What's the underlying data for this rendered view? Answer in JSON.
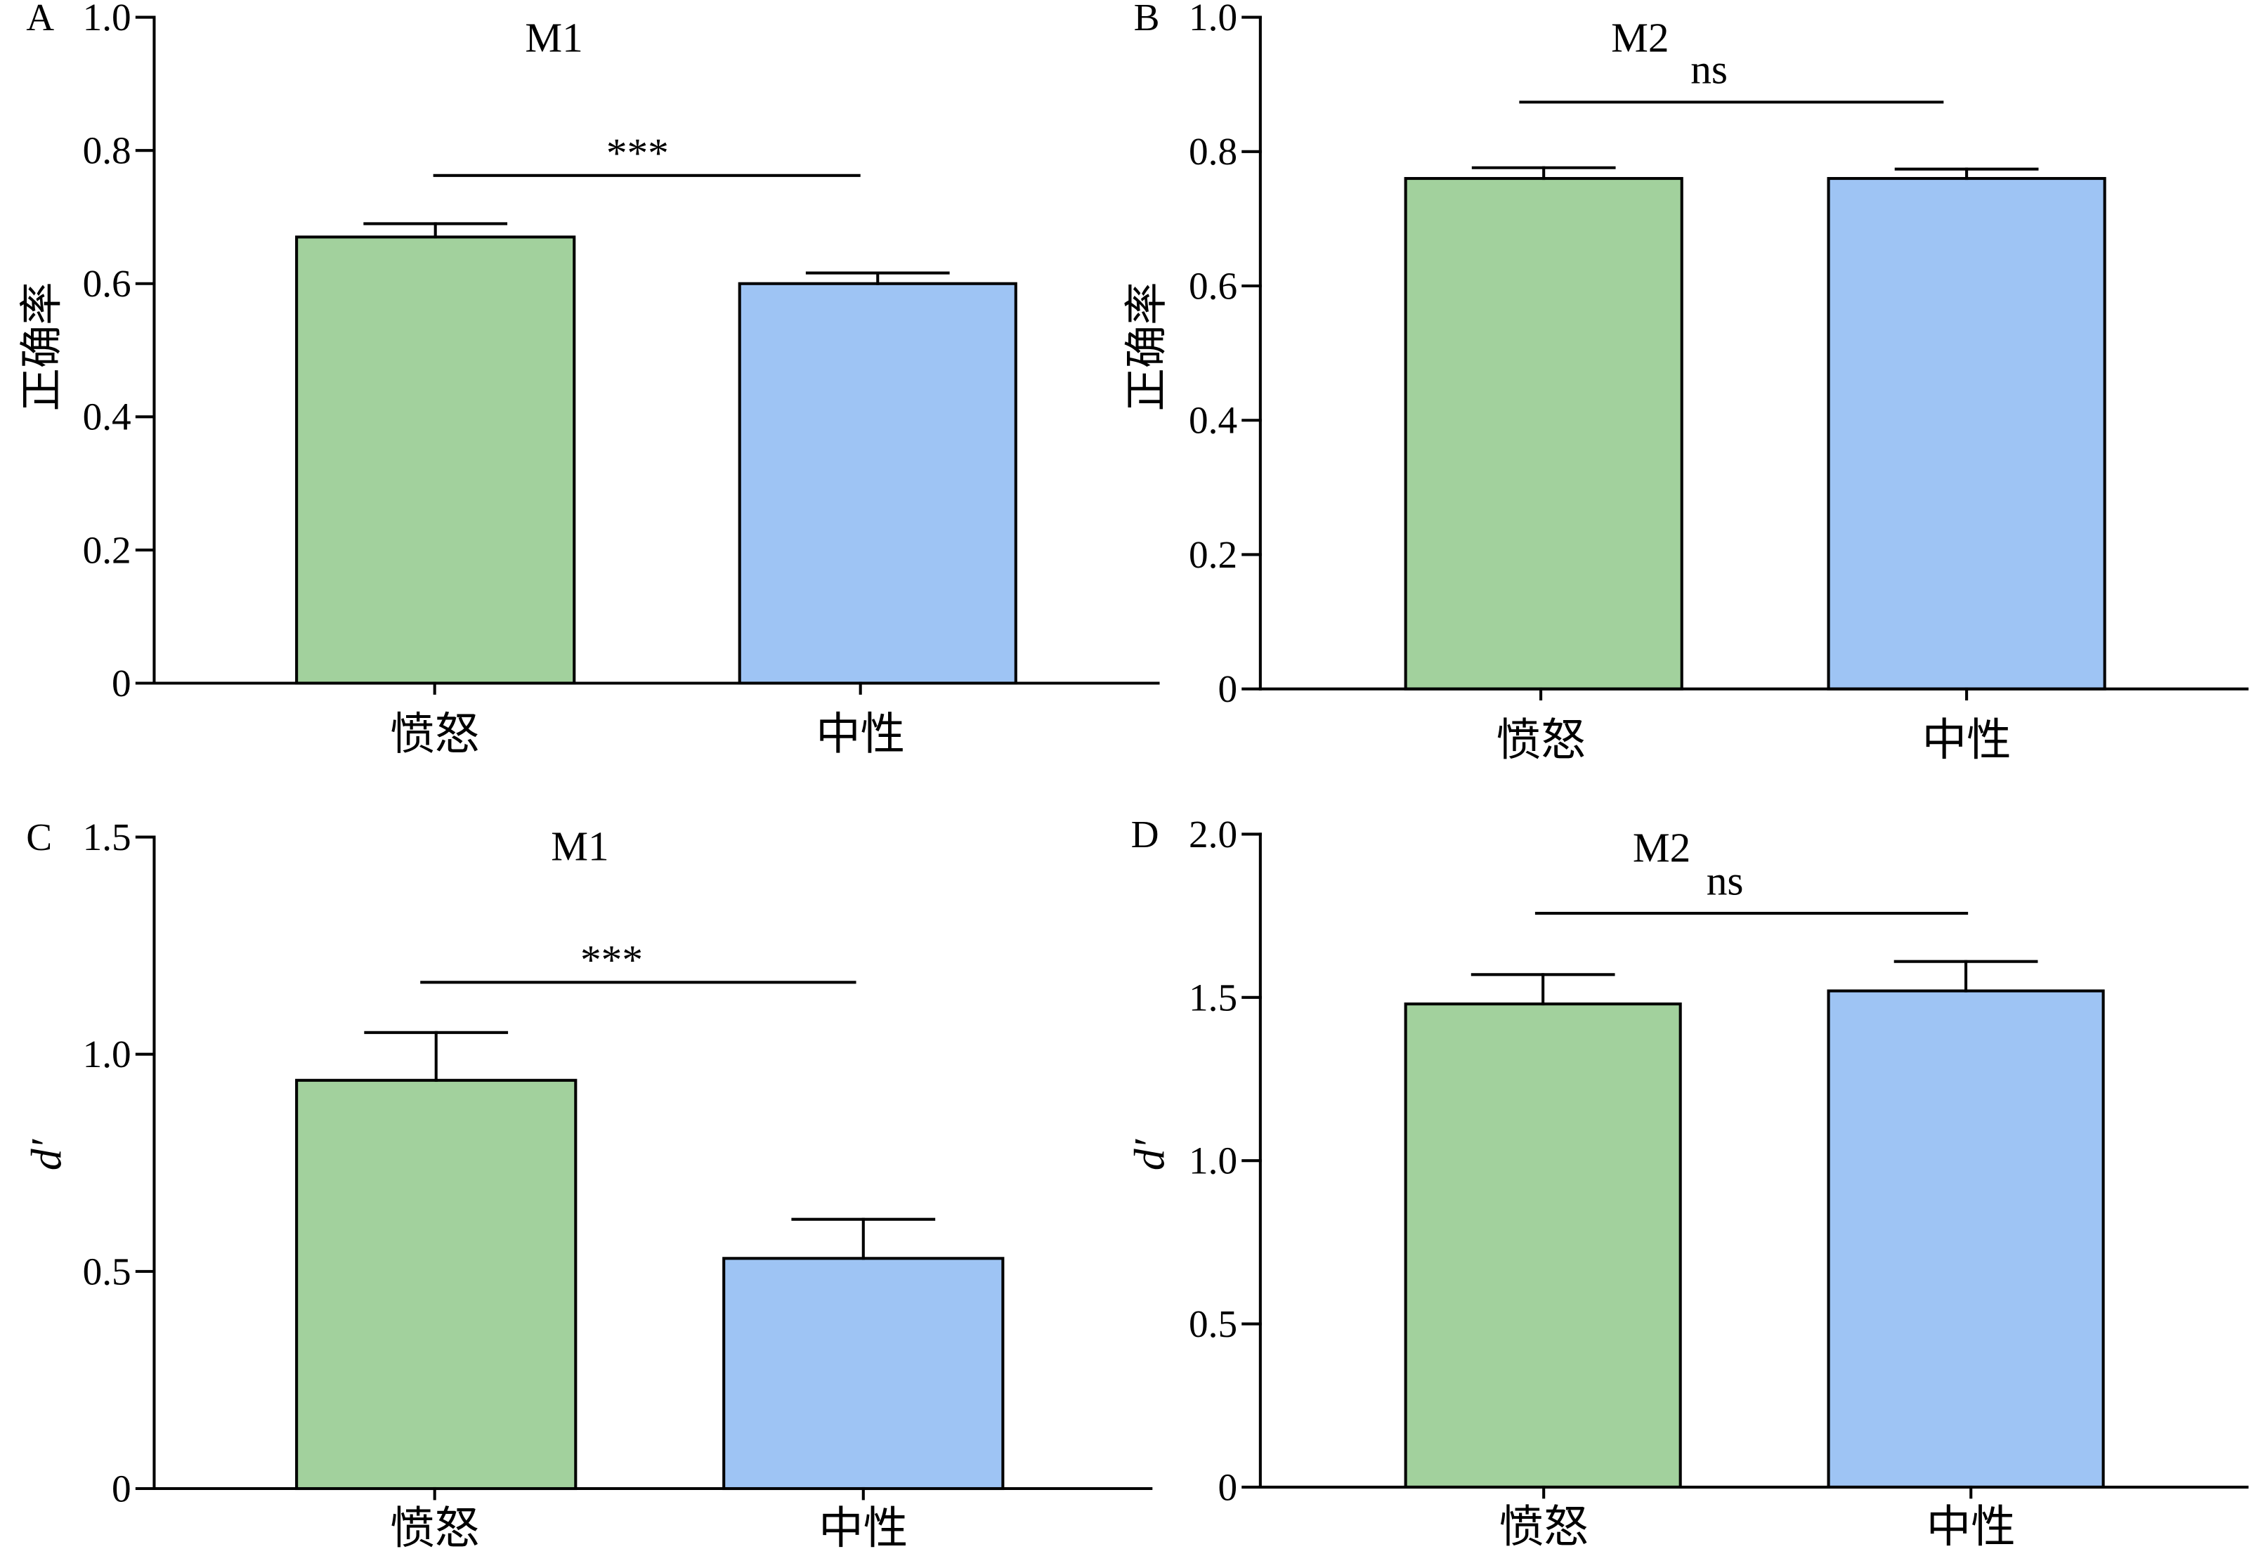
{
  "chart_data": [
    {
      "type": "bar",
      "panel": "A",
      "title": "M1",
      "ylabel": "正确率",
      "categories": [
        "愤怒",
        "中性"
      ],
      "values": [
        0.67,
        0.6
      ],
      "errors": [
        0.02,
        0.016
      ],
      "ylim": [
        0,
        1.0
      ],
      "yticks": [
        0,
        0.2,
        0.4,
        0.6,
        0.8,
        1.0
      ],
      "ytick_labels": [
        "0",
        "0.2",
        "0.4",
        "0.6",
        "0.8",
        "1.0"
      ],
      "significance": "***",
      "bar_colors": [
        "#a2d19d",
        "#9ec4f4"
      ]
    },
    {
      "type": "bar",
      "panel": "B",
      "title": "M2",
      "ylabel": "正确率",
      "categories": [
        "愤怒",
        "中性"
      ],
      "values": [
        0.76,
        0.76
      ],
      "errors": [
        0.016,
        0.014
      ],
      "ylim": [
        0,
        1.0
      ],
      "yticks": [
        0,
        0.2,
        0.4,
        0.6,
        0.8,
        1.0
      ],
      "ytick_labels": [
        "0",
        "0.2",
        "0.4",
        "0.6",
        "0.8",
        "1.0"
      ],
      "significance": "ns",
      "bar_colors": [
        "#a2d19d",
        "#9ec4f4"
      ]
    },
    {
      "type": "bar",
      "panel": "C",
      "title": "M1",
      "ylabel": "d′",
      "categories": [
        "愤怒",
        "中性"
      ],
      "values": [
        0.94,
        0.53
      ],
      "errors": [
        0.11,
        0.09
      ],
      "ylim": [
        0,
        1.5
      ],
      "yticks": [
        0,
        0.5,
        1.0,
        1.5
      ],
      "ytick_labels": [
        "0",
        "0.5",
        "1.0",
        "1.5"
      ],
      "significance": "***",
      "bar_colors": [
        "#a2d19d",
        "#9ec4f4"
      ]
    },
    {
      "type": "bar",
      "panel": "D",
      "title": "M2",
      "ylabel": "d′",
      "categories": [
        "愤怒",
        "中性"
      ],
      "values": [
        1.48,
        1.52
      ],
      "errors": [
        0.09,
        0.09
      ],
      "ylim": [
        0,
        2.0
      ],
      "yticks": [
        0,
        0.5,
        1.0,
        1.5,
        2.0
      ],
      "ytick_labels": [
        "0",
        "0.5",
        "1.0",
        "1.5",
        "2.0"
      ],
      "significance": "ns",
      "bar_colors": [
        "#a2d19d",
        "#9ec4f4"
      ]
    }
  ]
}
